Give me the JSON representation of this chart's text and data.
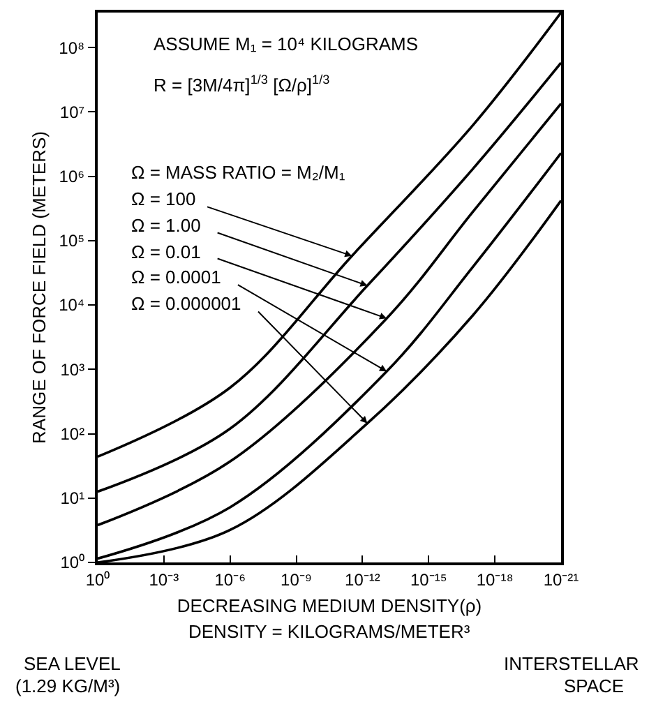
{
  "chart_data": {
    "type": "line",
    "xlabel": "DECREASING MEDIUM DENSITY(ρ)",
    "ylabel": "RANGE OF FORCE FIELD (METERS)",
    "log": "xy",
    "xlim": [
      1,
      1e-21
    ],
    "ylim": [
      1,
      350000000.0
    ],
    "xticks": [
      {
        "value": 1,
        "label": "10⁰"
      },
      {
        "value": 0.001,
        "label": "10⁻³"
      },
      {
        "value": 1e-06,
        "label": "10⁻⁶"
      },
      {
        "value": 1e-09,
        "label": "10⁻⁹"
      },
      {
        "value": 1e-12,
        "label": "10⁻¹²"
      },
      {
        "value": 1e-15,
        "label": "10⁻¹⁵"
      },
      {
        "value": 1e-18,
        "label": "10⁻¹⁸"
      },
      {
        "value": 1e-21,
        "label": "10⁻²¹"
      }
    ],
    "yticks": [
      {
        "value": 1,
        "label": "10⁰"
      },
      {
        "value": 10,
        "label": "10¹"
      },
      {
        "value": 100,
        "label": "10²"
      },
      {
        "value": 1000,
        "label": "10³"
      },
      {
        "value": 10000,
        "label": "10⁴"
      },
      {
        "value": 100000,
        "label": "10⁵"
      },
      {
        "value": 1000000,
        "label": "10⁶"
      },
      {
        "value": 10000000,
        "label": "10⁷"
      },
      {
        "value": 100000000,
        "label": "10⁸"
      }
    ],
    "legend": false,
    "line_style": "solid",
    "series": [
      {
        "color": "#000000",
        "x": [
          1,
          1e-06,
          3e-12,
          1e-17,
          1e-21
        ],
        "values": [
          44,
          520,
          58000,
          6200000,
          350000000
        ]
      },
      {
        "color": "#000000",
        "x": [
          1,
          1e-06,
          6e-13,
          1e-17,
          1e-21
        ],
        "values": [
          12.6,
          120,
          20000,
          1300000,
          58000000
        ]
      },
      {
        "color": "#000000",
        "x": [
          1,
          1e-06,
          8e-14,
          1e-17,
          1e-21
        ],
        "values": [
          3.8,
          37,
          6200,
          280000,
          13500000
        ]
      },
      {
        "color": "#000000",
        "x": [
          1,
          1e-06,
          8e-14,
          1e-17,
          1e-21
        ],
        "values": [
          1.15,
          7.2,
          930,
          39000,
          2300000
        ]
      },
      {
        "color": "#000000",
        "x": [
          1,
          1e-06,
          6e-13,
          1e-17,
          1e-21
        ],
        "values": [
          1.0,
          3.2,
          145,
          6900,
          420000
        ]
      }
    ],
    "annotations": [
      "ASSUME M₁ = 10⁴ KILOGRAMS",
      "R = [3M/4π]$^{1/3}$ [Ω/ρ]$^{1/3}$",
      "Ω = MASS RATIO = M₂/M₁",
      "DENSITY = KILOGRAMS/METER³",
      "SEA LEVEL",
      "(1.29 KG/M³)",
      "INTERSTELLAR",
      "SPACE",
      {
        "text": "Ω = 100",
        "x": 3e-12,
        "y": 58000
      },
      {
        "text": "Ω = 1.00",
        "x": 6e-13,
        "y": 20000
      },
      {
        "text": "Ω = 0.01",
        "x": 8e-14,
        "y": 6200
      },
      {
        "text": "Ω = 0.0001",
        "x": 8e-14,
        "y": 930
      },
      {
        "text": "Ω = 0.000001",
        "x": 6e-13,
        "y": 145
      }
    ]
  }
}
